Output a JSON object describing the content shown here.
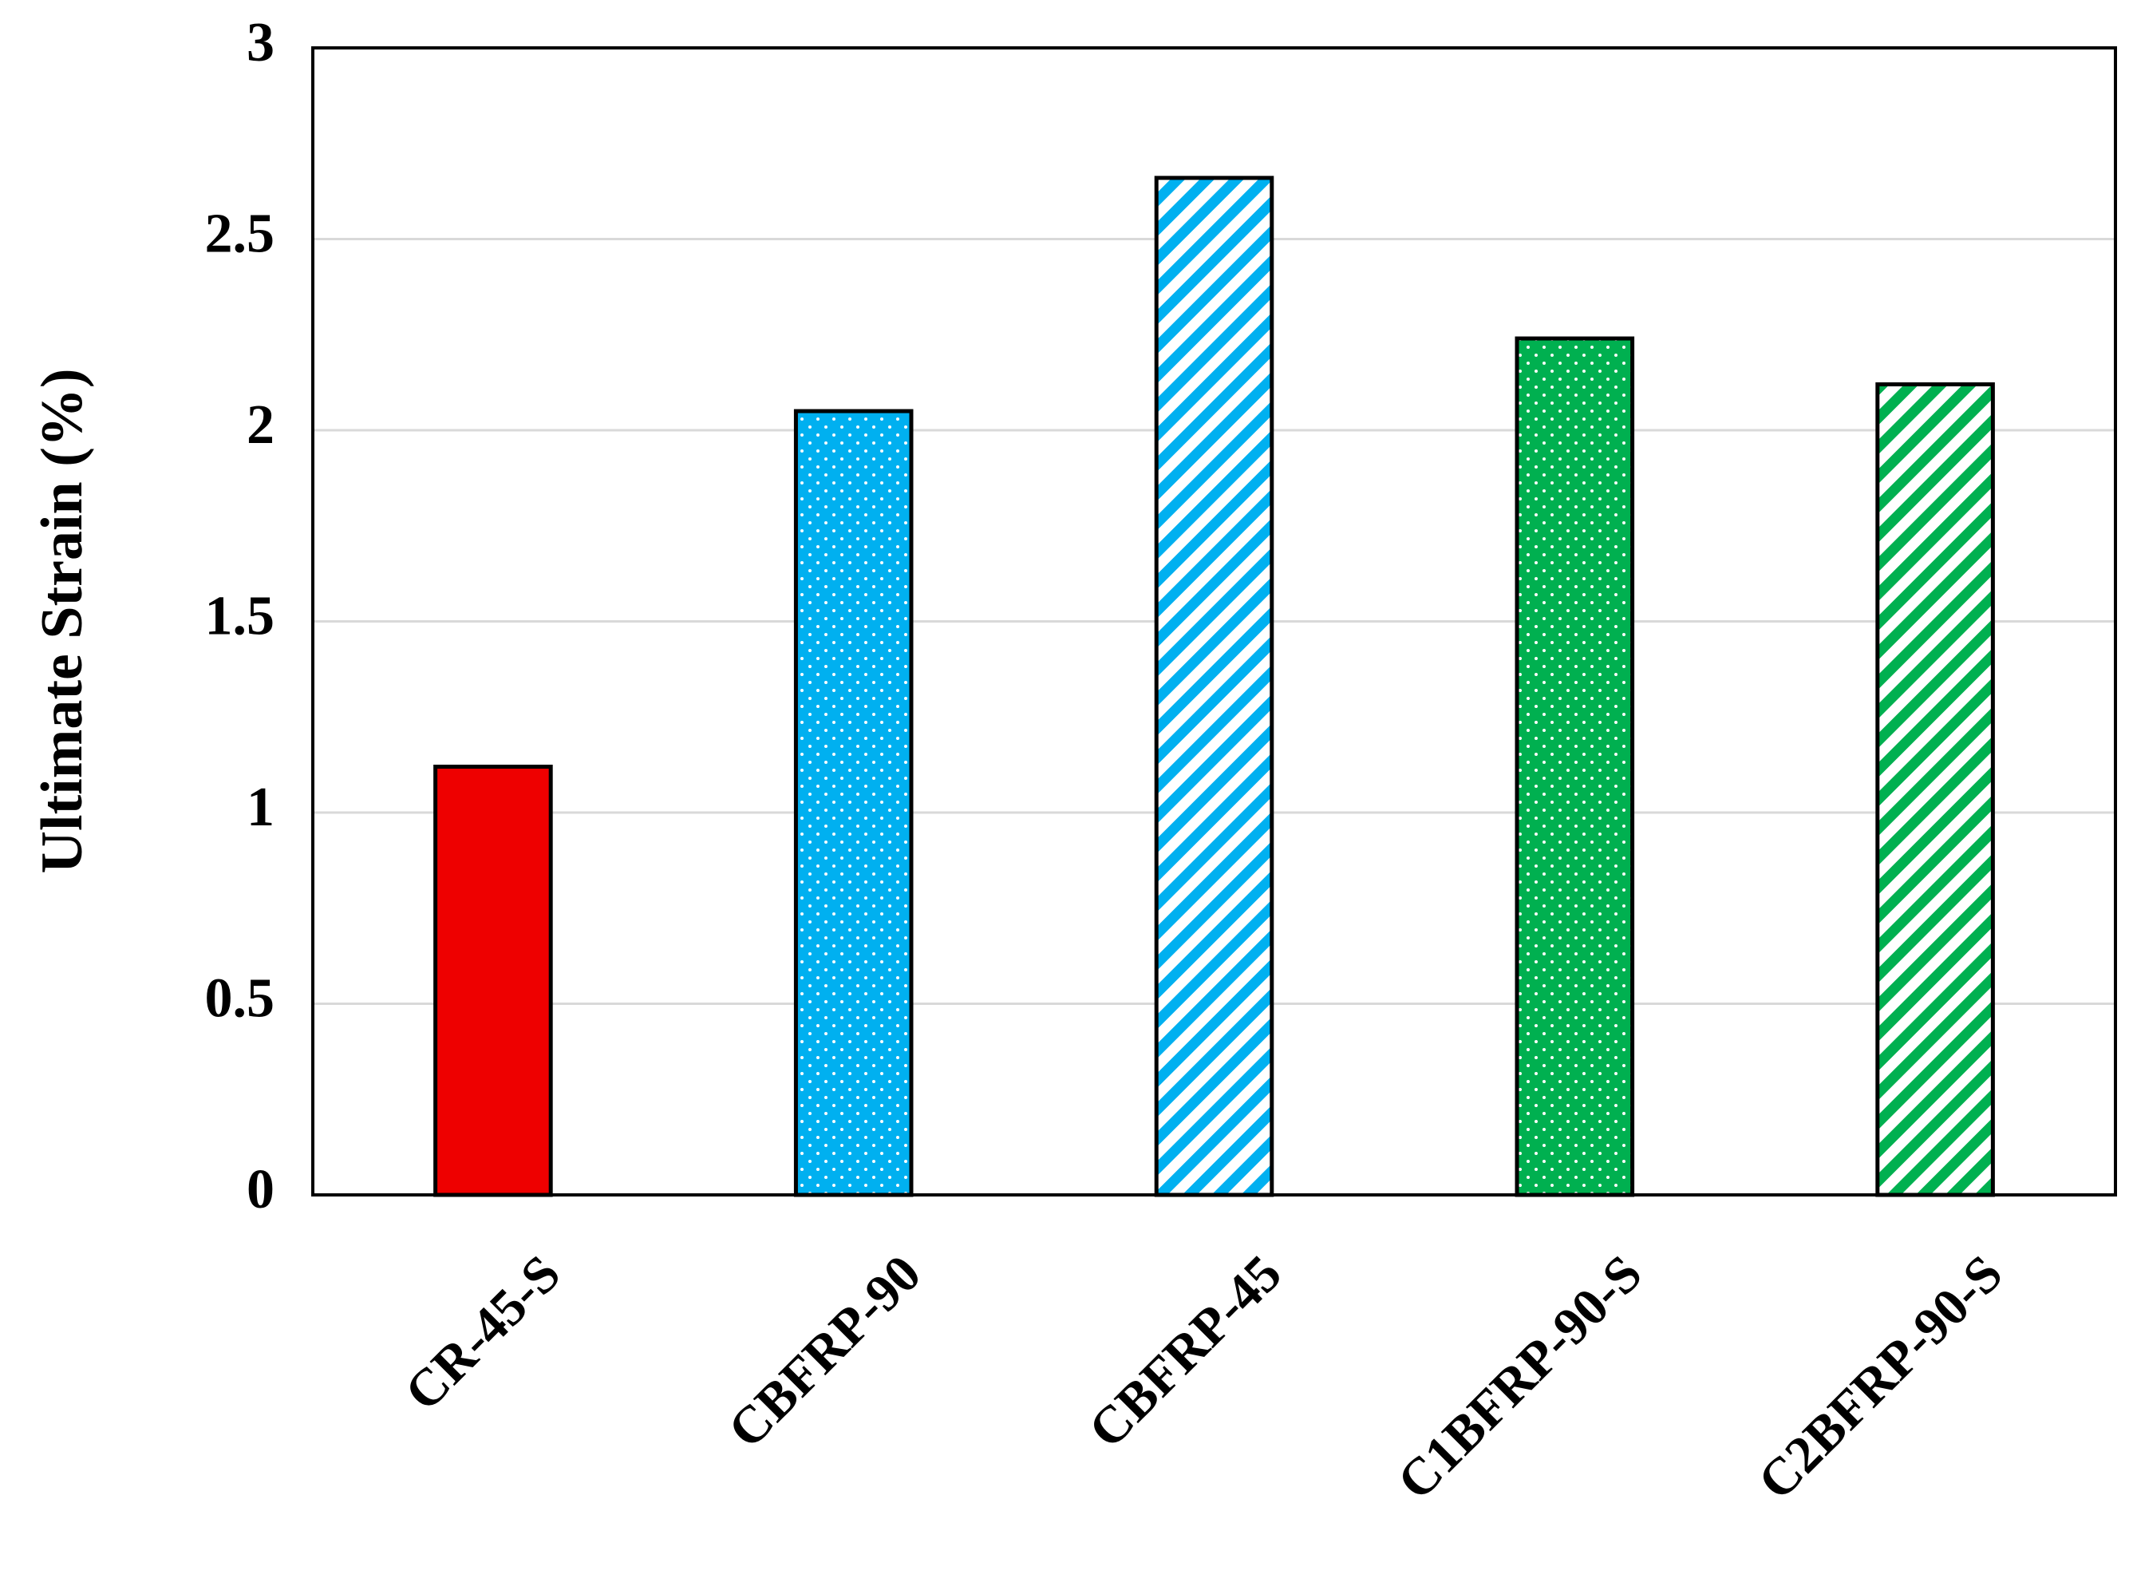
{
  "chart_data": {
    "type": "bar",
    "y_label": "Ultimate Strain (%)",
    "categories": [
      "CR-45-S",
      "CBFRP-90",
      "CBFRP-45",
      "C1BFRP-90-S",
      "C2BFRP-90-S"
    ],
    "values": [
      1.12,
      2.05,
      2.66,
      2.24,
      2.12
    ],
    "colors": [
      "#ee0000",
      "#00b0f0",
      "#00b0f0",
      "#00b050",
      "#00b050"
    ],
    "patterns": [
      "solid",
      "dots",
      "stripes",
      "dots",
      "stripes"
    ],
    "ylim": [
      0,
      3
    ],
    "yticks": [
      0,
      0.5,
      1,
      1.5,
      2,
      2.5,
      3
    ],
    "grid": true
  }
}
